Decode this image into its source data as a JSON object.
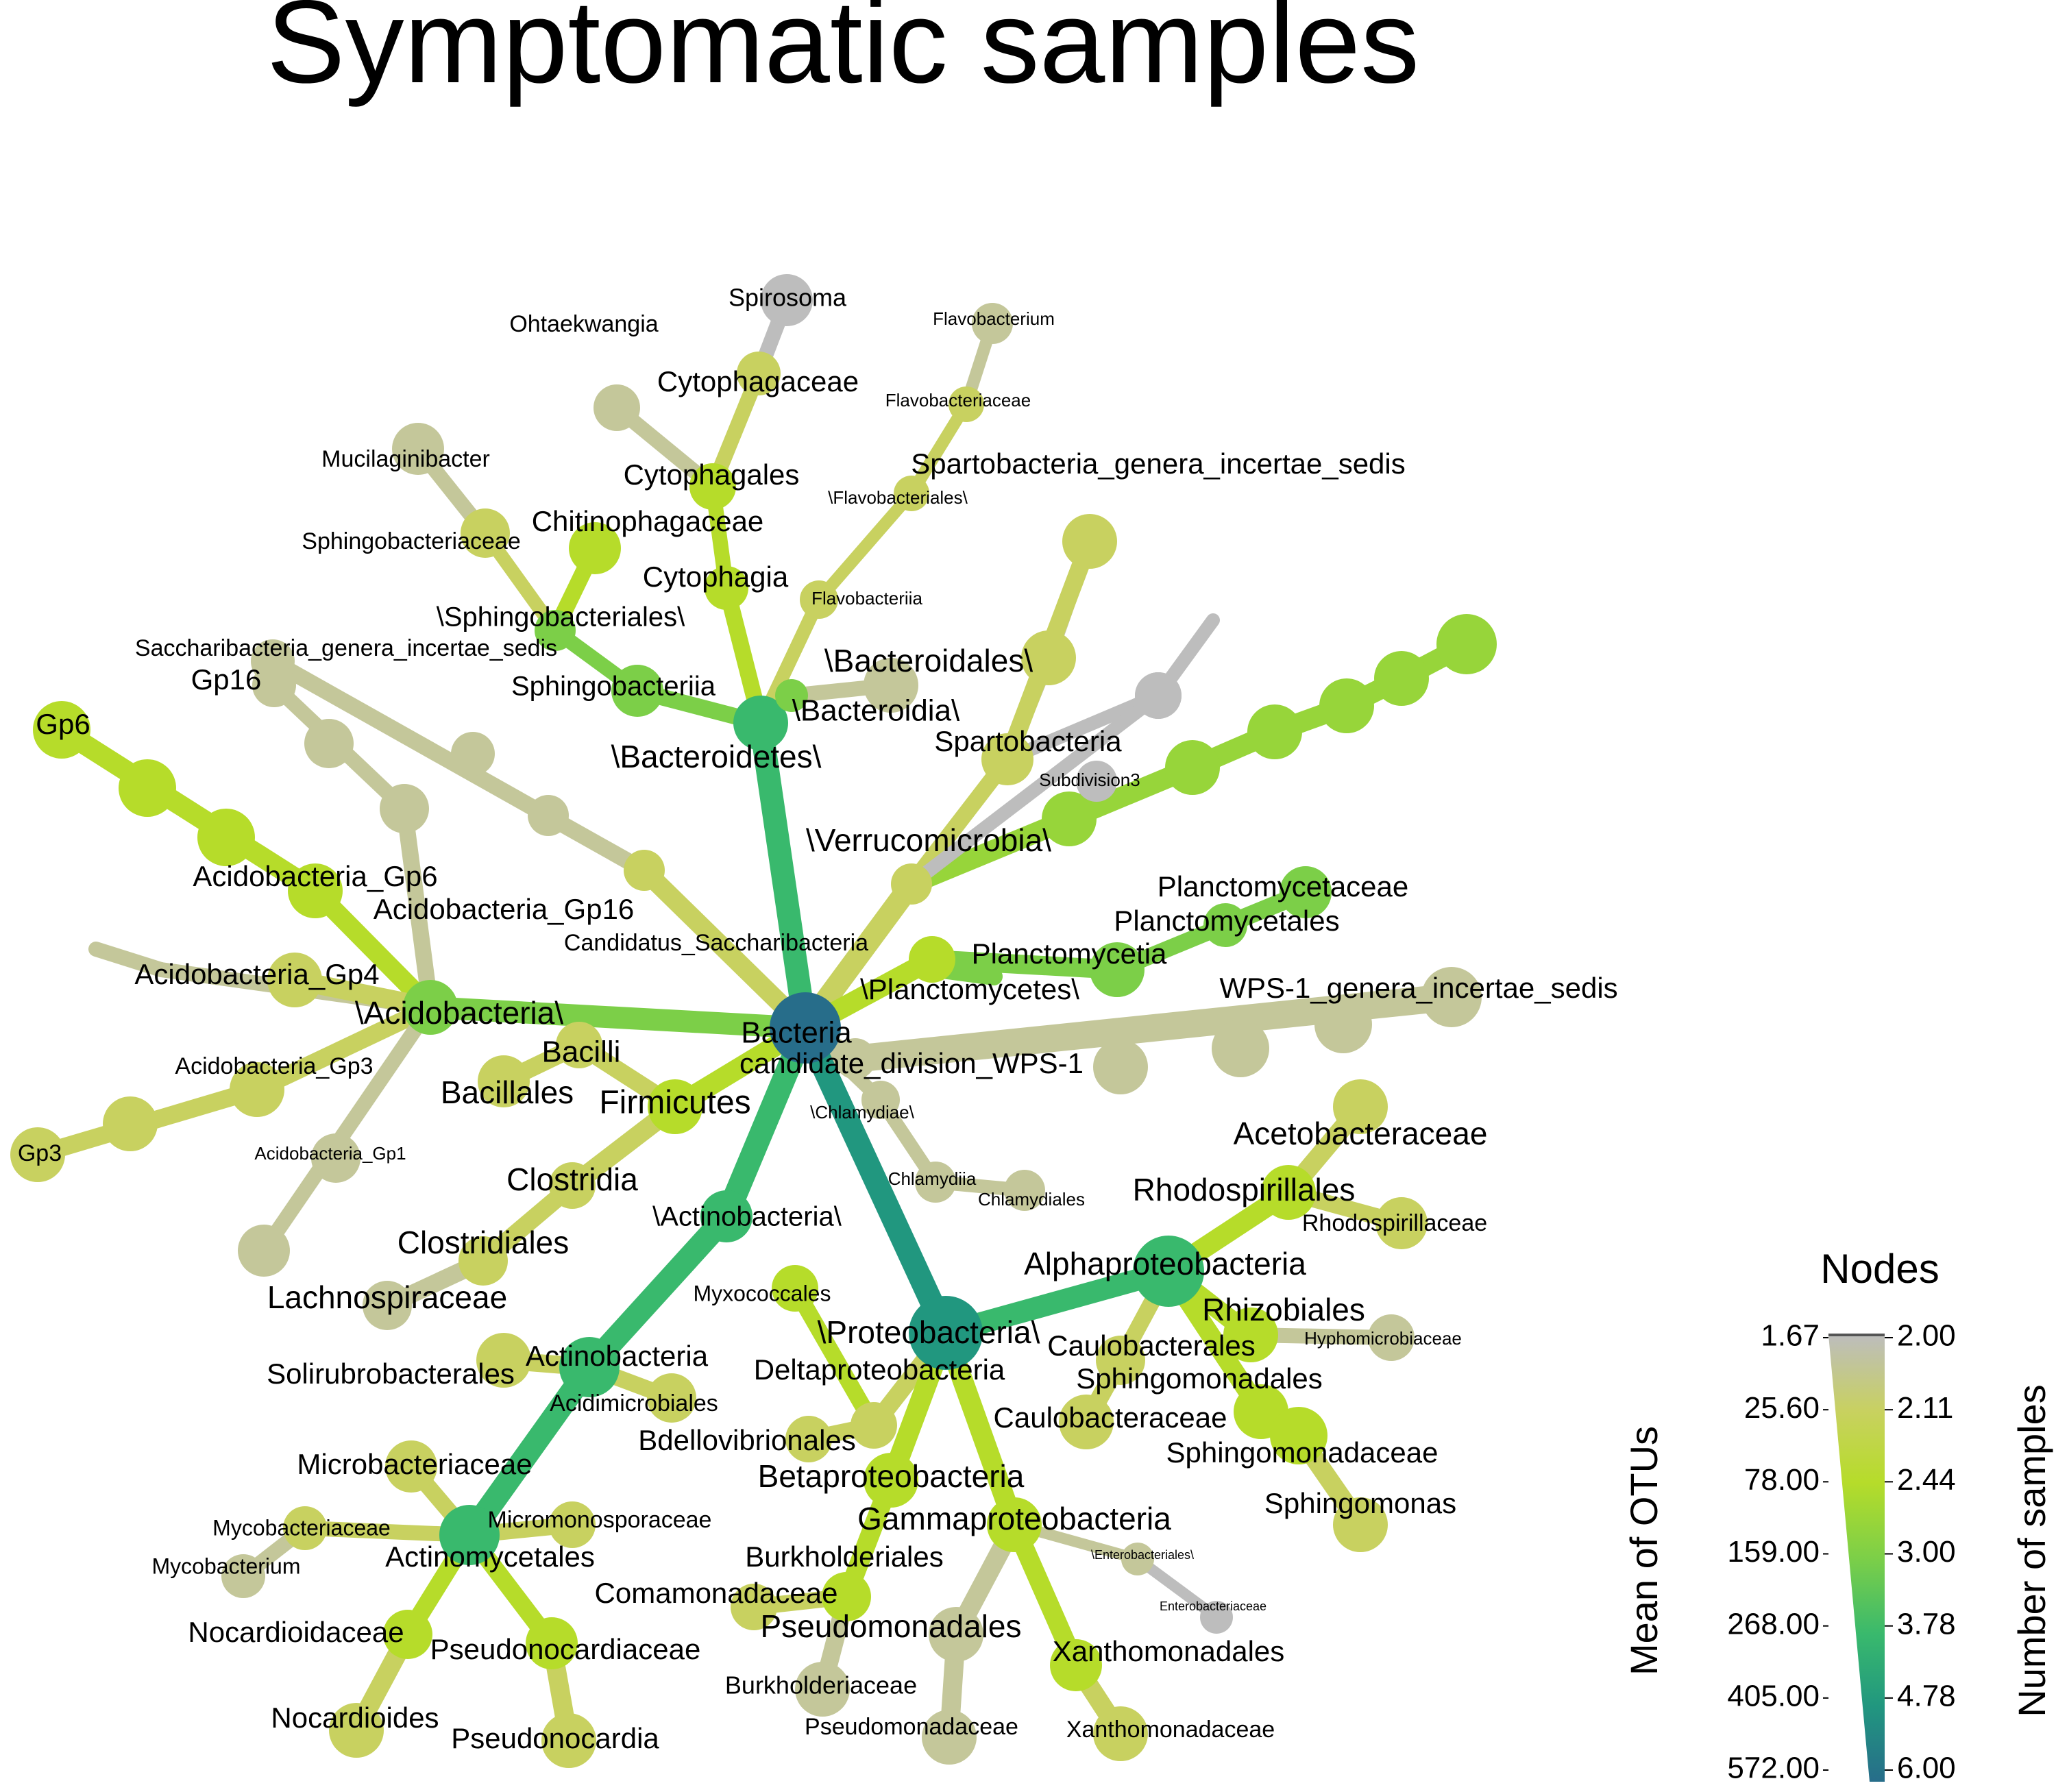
{
  "title": "Symptomatic samples",
  "legend": {
    "title": "Nodes",
    "left_axis_title": "Mean of OTUs",
    "right_axis_title": "Number of samples",
    "left_ticks": [
      "1.67",
      "25.60",
      "78.00",
      "159.00",
      "268.00",
      "405.00",
      "572.00"
    ],
    "right_ticks": [
      "2.00",
      "2.11",
      "2.44",
      "3.00",
      "3.78",
      "4.78",
      "6.00"
    ],
    "colors": [
      "#bdbdbd",
      "#c8d160",
      "#b6dc2a",
      "#7ccf48",
      "#39b96d",
      "#21977f",
      "#276d8a"
    ]
  },
  "nodes": [
    {
      "id": "bacteria",
      "label": "Bacteria"
    },
    {
      "id": "wps1",
      "label": "candidate_division_WPS-1"
    },
    {
      "id": "wps1_genera",
      "label": "WPS-1_genera_incertae_sedis"
    },
    {
      "id": "bacteroidetes",
      "label": "\\Bacteroidetes\\"
    },
    {
      "id": "bacteroidia",
      "label": "\\Bacteroidia\\"
    },
    {
      "id": "bacteroidales",
      "label": "\\Bacteroidales\\"
    },
    {
      "id": "sphingobacteriia",
      "label": "Sphingobacteriia"
    },
    {
      "id": "sphingobacteriales",
      "label": "\\Sphingobacteriales\\"
    },
    {
      "id": "chitinophagaceae",
      "label": "Chitinophagaceae"
    },
    {
      "id": "sphingobacteriaceae",
      "label": "Sphingobacteriaceae"
    },
    {
      "id": "mucilaginibacter",
      "label": "Mucilaginibacter"
    },
    {
      "id": "cytophagia",
      "label": "Cytophagia"
    },
    {
      "id": "cytophagales",
      "label": "Cytophagales"
    },
    {
      "id": "cytophagaceae",
      "label": "Cytophagaceae"
    },
    {
      "id": "ohtaekwangia",
      "label": "Ohtaekwangia"
    },
    {
      "id": "spirosoma",
      "label": "Spirosoma"
    },
    {
      "id": "flavobacteriia",
      "label": "Flavobacteriia"
    },
    {
      "id": "flavobacteriales",
      "label": "\\Flavobacteriales\\"
    },
    {
      "id": "flavobacteriaceae",
      "label": "Flavobacteriaceae"
    },
    {
      "id": "flavobacterium",
      "label": "Flavobacterium"
    },
    {
      "id": "verrucomicrobia",
      "label": "\\Verrucomicrobia\\"
    },
    {
      "id": "spartobacteria",
      "label": "Spartobacteria"
    },
    {
      "id": "spartobacteria_genera",
      "label": "Spartobacteria_genera_incertae_sedis"
    },
    {
      "id": "subdivision3",
      "label": "Subdivision3"
    },
    {
      "id": "planctomycetes",
      "label": "\\Planctomycetes\\"
    },
    {
      "id": "planctomycetia",
      "label": "Planctomycetia"
    },
    {
      "id": "planctomycetales",
      "label": "Planctomycetales"
    },
    {
      "id": "planctomycetaceae",
      "label": "Planctomycetaceae"
    },
    {
      "id": "candidatus_sacch",
      "label": "Candidatus_Saccharibacteria"
    },
    {
      "id": "sacch_genera",
      "label": "Saccharibacteria_genera_incertae_sedis"
    },
    {
      "id": "acidobacteria",
      "label": "\\Acidobacteria\\"
    },
    {
      "id": "gp16_class",
      "label": "Acidobacteria_Gp16"
    },
    {
      "id": "gp16",
      "label": "Gp16"
    },
    {
      "id": "gp6_class",
      "label": "Acidobacteria_Gp6"
    },
    {
      "id": "gp6",
      "label": "Gp6"
    },
    {
      "id": "gp4_class",
      "label": "Acidobacteria_Gp4"
    },
    {
      "id": "gp3_class",
      "label": "Acidobacteria_Gp3"
    },
    {
      "id": "gp3",
      "label": "Gp3"
    },
    {
      "id": "gp1_class",
      "label": "Acidobacteria_Gp1"
    },
    {
      "id": "firmicutes",
      "label": "Firmicutes"
    },
    {
      "id": "bacilli",
      "label": "Bacilli"
    },
    {
      "id": "bacillales",
      "label": "Bacillales"
    },
    {
      "id": "clostridia",
      "label": "Clostridia"
    },
    {
      "id": "clostridiales",
      "label": "Clostridiales"
    },
    {
      "id": "lachnospiraceae",
      "label": "Lachnospiraceae"
    },
    {
      "id": "chlamydiae",
      "label": "\\Chlamydiae\\"
    },
    {
      "id": "chlamydiia",
      "label": "Chlamydiia"
    },
    {
      "id": "chlamydiales",
      "label": "Chlamydiales"
    },
    {
      "id": "actinobacteria_phylum",
      "label": "\\Actinobacteria\\"
    },
    {
      "id": "actinobacteria_class",
      "label": "Actinobacteria"
    },
    {
      "id": "solirubrobacterales",
      "label": "Solirubrobacterales"
    },
    {
      "id": "acidimicrobiales",
      "label": "Acidimicrobiales"
    },
    {
      "id": "actinomycetales",
      "label": "Actinomycetales"
    },
    {
      "id": "microbacteriaceae",
      "label": "Microbacteriaceae"
    },
    {
      "id": "mycobacteriaceae",
      "label": "Mycobacteriaceae"
    },
    {
      "id": "mycobacterium",
      "label": "Mycobacterium"
    },
    {
      "id": "micromonosporaceae",
      "label": "Micromonosporaceae"
    },
    {
      "id": "nocardioidaceae",
      "label": "Nocardioidaceae"
    },
    {
      "id": "nocardioides",
      "label": "Nocardioides"
    },
    {
      "id": "pseudonocardiaceae",
      "label": "Pseudonocardiaceae"
    },
    {
      "id": "pseudonocardia",
      "label": "Pseudonocardia"
    },
    {
      "id": "proteobacteria",
      "label": "\\Proteobacteria\\"
    },
    {
      "id": "alphaproteobacteria",
      "label": "Alphaproteobacteria"
    },
    {
      "id": "rhodospirillales",
      "label": "Rhodospirillales"
    },
    {
      "id": "acetobacteraceae",
      "label": "Acetobacteraceae"
    },
    {
      "id": "rhodospirillaceae",
      "label": "Rhodospirillaceae"
    },
    {
      "id": "rhizobiales",
      "label": "Rhizobiales"
    },
    {
      "id": "hyphomicrobiaceae",
      "label": "Hyphomicrobiaceae"
    },
    {
      "id": "caulobacterales",
      "label": "Caulobacterales"
    },
    {
      "id": "caulobacteraceae",
      "label": "Caulobacteraceae"
    },
    {
      "id": "sphingomonadales",
      "label": "Sphingomonadales"
    },
    {
      "id": "sphingomonadaceae",
      "label": "Sphingomonadaceae"
    },
    {
      "id": "sphingomonas",
      "label": "Sphingomonas"
    },
    {
      "id": "deltaproteobacteria",
      "label": "Deltaproteobacteria"
    },
    {
      "id": "myxococcales",
      "label": "Myxococcales"
    },
    {
      "id": "bdellovibrionales",
      "label": "Bdellovibrionales"
    },
    {
      "id": "betaproteobacteria",
      "label": "Betaproteobacteria"
    },
    {
      "id": "burkholderiales",
      "label": "Burkholderiales"
    },
    {
      "id": "comamonadaceae",
      "label": "Comamonadaceae"
    },
    {
      "id": "burkholderiaceae",
      "label": "Burkholderiaceae"
    },
    {
      "id": "gammaproteobacteria",
      "label": "Gammaproteobacteria"
    },
    {
      "id": "pseudomonadales",
      "label": "Pseudomonadales"
    },
    {
      "id": "pseudomonadaceae",
      "label": "Pseudomonadaceae"
    },
    {
      "id": "enterobacteriales",
      "label": "\\Enterobacteriales\\"
    },
    {
      "id": "enterobacteriaceae",
      "label": "Enterobacteriaceae"
    },
    {
      "id": "xanthomonadales",
      "label": "Xanthomonadales"
    },
    {
      "id": "xanthomonadaceae",
      "label": "Xanthomonadaceae"
    }
  ]
}
